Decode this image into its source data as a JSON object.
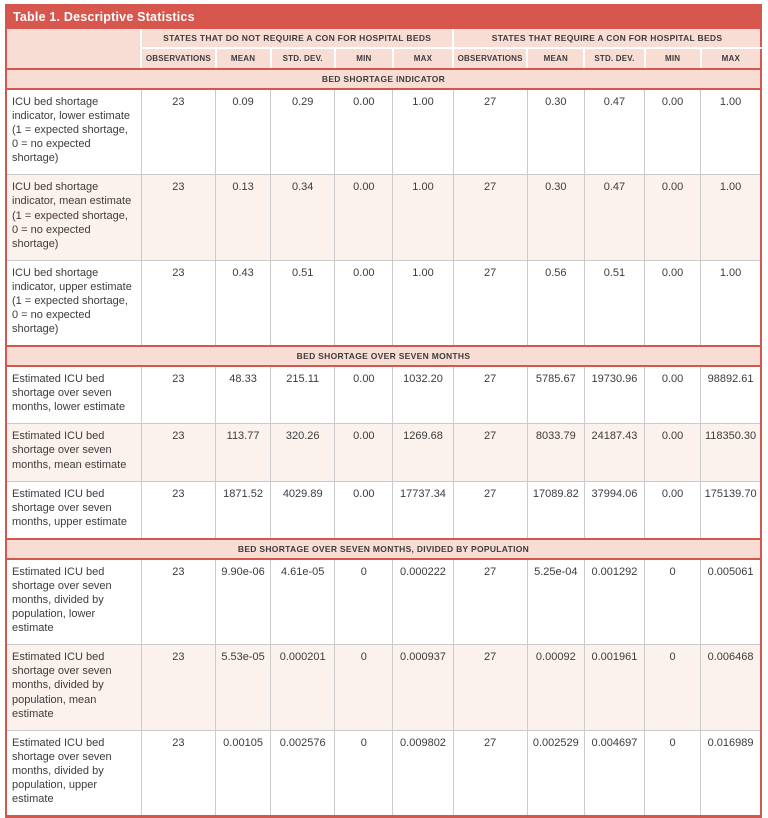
{
  "title": "Table 1. Descriptive Statistics",
  "groups": [
    {
      "label": "STATES THAT DO NOT REQUIRE A CON FOR HOSPITAL BEDS"
    },
    {
      "label": "STATES THAT REQUIRE A CON FOR HOSPITAL BEDS"
    }
  ],
  "columns": [
    "OBSERVATIONS",
    "MEAN",
    "STD. DEV.",
    "MIN",
    "MAX"
  ],
  "sections": [
    {
      "header": "BED SHORTAGE INDICATOR",
      "rows": [
        {
          "label": "ICU bed shortage indicator, lower estimate (1 = expected shortage, 0 = no expected shortage)",
          "no_con": [
            "23",
            "0.09",
            "0.29",
            "0.00",
            "1.00"
          ],
          "con": [
            "27",
            "0.30",
            "0.47",
            "0.00",
            "1.00"
          ]
        },
        {
          "label": "ICU bed shortage indicator, mean estimate (1 = expected shortage, 0 = no expected shortage)",
          "no_con": [
            "23",
            "0.13",
            "0.34",
            "0.00",
            "1.00"
          ],
          "con": [
            "27",
            "0.30",
            "0.47",
            "0.00",
            "1.00"
          ]
        },
        {
          "label": "ICU bed shortage indicator, upper estimate (1 = expected shortage, 0 = no expected shortage)",
          "no_con": [
            "23",
            "0.43",
            "0.51",
            "0.00",
            "1.00"
          ],
          "con": [
            "27",
            "0.56",
            "0.51",
            "0.00",
            "1.00"
          ]
        }
      ]
    },
    {
      "header": "BED SHORTAGE OVER SEVEN MONTHS",
      "rows": [
        {
          "label": "Estimated ICU bed shortage over seven months, lower estimate",
          "no_con": [
            "23",
            "48.33",
            "215.11",
            "0.00",
            "1032.20"
          ],
          "con": [
            "27",
            "5785.67",
            "19730.96",
            "0.00",
            "98892.61"
          ]
        },
        {
          "label": "Estimated ICU bed shortage over seven months, mean estimate",
          "no_con": [
            "23",
            "113.77",
            "320.26",
            "0.00",
            "1269.68"
          ],
          "con": [
            "27",
            "8033.79",
            "24187.43",
            "0.00",
            "118350.30"
          ]
        },
        {
          "label": "Estimated ICU bed shortage over seven months, upper estimate",
          "no_con": [
            "23",
            "1871.52",
            "4029.89",
            "0.00",
            "17737.34"
          ],
          "con": [
            "27",
            "17089.82",
            "37994.06",
            "0.00",
            "175139.70"
          ]
        }
      ]
    },
    {
      "header": "BED SHORTAGE OVER SEVEN MONTHS, DIVIDED BY POPULATION",
      "rows": [
        {
          "label": "Estimated ICU bed shortage over seven months, divided by population, lower estimate",
          "no_con": [
            "23",
            "9.90e-06",
            "4.61e-05",
            "0",
            "0.000222"
          ],
          "con": [
            "27",
            "5.25e-04",
            "0.001292",
            "0",
            "0.005061"
          ]
        },
        {
          "label": "Estimated ICU bed shortage over seven months, divided by population, mean estimate",
          "no_con": [
            "23",
            "5.53e-05",
            "0.000201",
            "0",
            "0.000937"
          ],
          "con": [
            "27",
            "0.00092",
            "0.001961",
            "0",
            "0.006468"
          ]
        },
        {
          "label": "Estimated ICU bed shortage over seven months, divided by population, upper estimate",
          "no_con": [
            "23",
            "0.00105",
            "0.002576",
            "0",
            "0.009802"
          ],
          "con": [
            "27",
            "0.002529",
            "0.004697",
            "0",
            "0.016989"
          ]
        }
      ]
    }
  ],
  "colors": {
    "accent_red": "#d5564c",
    "header_pink": "#f8ddd5",
    "alt_row_pink": "#fbf1ed",
    "grid_gray": "#cbcbcb",
    "text_dark": "#3d3c3c",
    "title_text": "#ffffff"
  }
}
